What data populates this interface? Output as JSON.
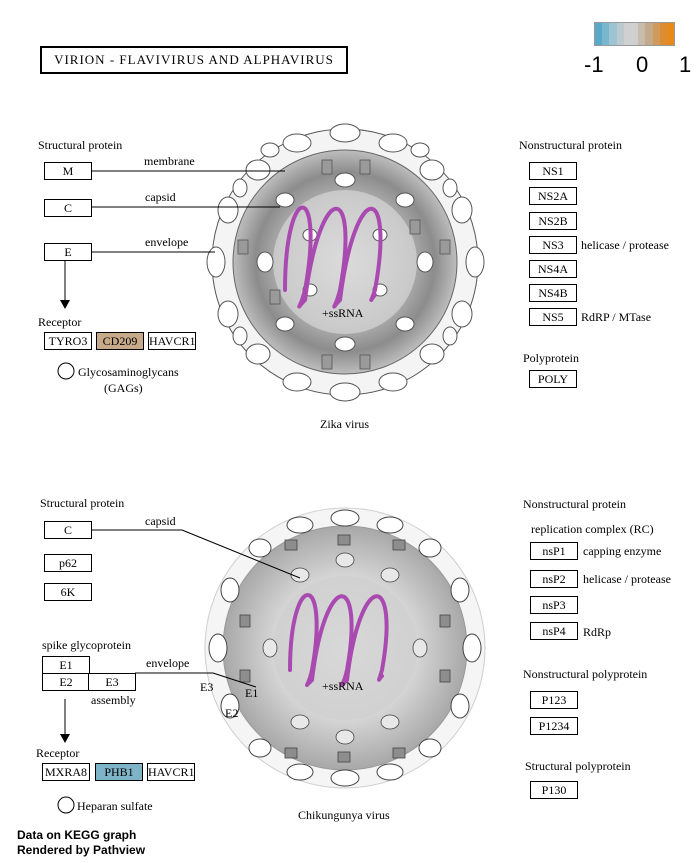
{
  "title": "VIRION - FLAVIVIRUS AND ALPHAVIRUS",
  "legend": {
    "labels": [
      "-1",
      "0",
      "1"
    ],
    "colors": [
      "#5aa9c8",
      "#79b7cf",
      "#9ec3d2",
      "#bcc9ce",
      "#d0d0d0",
      "#d0d0d0",
      "#c8bcaf",
      "#c4a98a",
      "#cf9a5b",
      "#dc8d2f",
      "#e8891a"
    ]
  },
  "zika": {
    "structural_heading": "Structural protein",
    "genes": {
      "m": "M",
      "c": "C",
      "e": "E"
    },
    "labels": {
      "membrane": "membrane",
      "capsid": "capsid",
      "envelope": "envelope",
      "rna": "+ssRNA"
    },
    "receptor_heading": "Receptor",
    "receptors": {
      "tyro3": "TYRO3",
      "cd209": "CD209",
      "havcr1": "HAVCR1"
    },
    "gags": "Glycosaminoglycans",
    "gags_abbr": "(GAGs)",
    "virus_label": "Zika virus",
    "nonstructural_heading": "Nonstructural protein",
    "ns": [
      "NS1",
      "NS2A",
      "NS2B",
      "NS3",
      "NS4A",
      "NS4B",
      "NS5"
    ],
    "ns3_desc": "helicase / protease",
    "ns5_desc": "RdRP / MTase",
    "polyprotein_heading": "Polyprotein",
    "poly": "POLY"
  },
  "chik": {
    "structural_heading": "Structural protein",
    "genes": {
      "c": "C",
      "p62": "p62",
      "k6": "6K",
      "e1": "E1",
      "e2": "E2",
      "e3": "E3"
    },
    "labels": {
      "capsid": "capsid",
      "spike": "spike glycoprotein",
      "envelope": "envelope",
      "assembly": "assembly",
      "e3": "E3",
      "e1": "E1",
      "e2": "E2",
      "rna": "+ssRNA"
    },
    "receptor_heading": "Receptor",
    "receptors": {
      "mxra8": "MXRA8",
      "phb1": "PHB1",
      "havcr1": "HAVCR1"
    },
    "heparan": "Heparan sulfate",
    "virus_label": "Chikungunya virus",
    "nonstructural_heading": "Nonstructural protein",
    "rc_heading": "replication complex (RC)",
    "nsp": [
      "nsP1",
      "nsP2",
      "nsP3",
      "nsP4"
    ],
    "nsp1_desc": "capping enzyme",
    "nsp2_desc": "helicase / protease",
    "nsp4_desc": "RdRp",
    "ns_poly_heading": "Nonstructural polyprotein",
    "ns_poly": [
      "P123",
      "P1234"
    ],
    "s_poly_heading": "Structural polyprotein",
    "s_poly": "P130"
  },
  "footer": {
    "line1": "Data on KEGG graph",
    "line2": "Rendered by Pathview"
  },
  "colors": {
    "cd209_fill": "#c6aa8a",
    "phb1_fill": "#7fb3c7",
    "rna": "#a94ab0"
  }
}
